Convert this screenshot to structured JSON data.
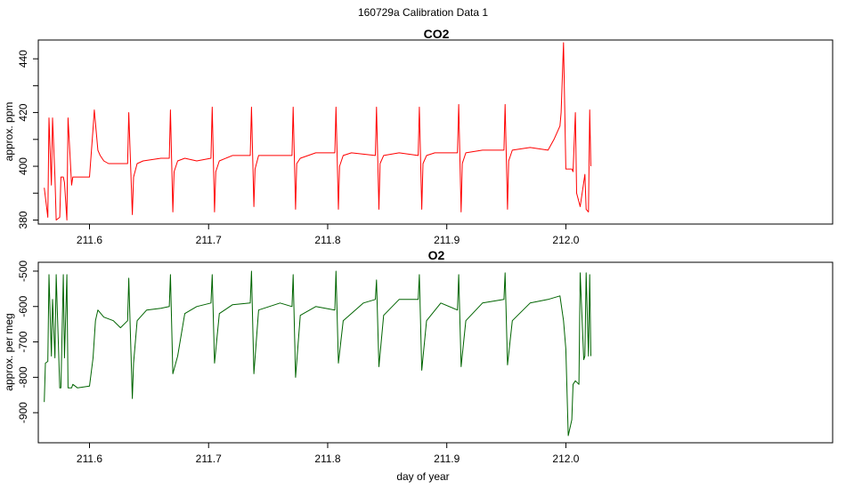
{
  "figure": {
    "suptitle": "160729a   Calibration Data 1"
  },
  "chart_data": [
    {
      "type": "line",
      "title": "CO2",
      "xlabel": "",
      "ylabel": "approx. ppm",
      "xlim": [
        211.557,
        212.224
      ],
      "ylim": [
        378.5,
        447
      ],
      "xticks": [
        211.6,
        211.7,
        211.8,
        211.9,
        212.0
      ],
      "xtick_labels": [
        "211.6",
        "211.7",
        "211.8",
        "211.9",
        "212.0"
      ],
      "yticks": [
        380,
        390,
        400,
        410,
        420,
        430,
        440
      ],
      "ytick_labels": [
        "380",
        "",
        "400",
        "",
        "420",
        "",
        "440"
      ],
      "color": "#ff0000",
      "grid": false,
      "series": [
        {
          "x": [
            211.562,
            211.565,
            211.566,
            211.568,
            211.569,
            211.571,
            211.572,
            211.575,
            211.576,
            211.578,
            211.579,
            211.581,
            211.582,
            211.585,
            211.586,
            211.589,
            211.59,
            211.6,
            211.603,
            211.604,
            211.607,
            211.609,
            211.612,
            211.616,
            211.625,
            211.632,
            211.633,
            211.636,
            211.637,
            211.64,
            211.645,
            211.66,
            211.667,
            211.668,
            211.67,
            211.671,
            211.674,
            211.68,
            211.69,
            211.702,
            211.703,
            211.705,
            211.706,
            211.709,
            211.72,
            211.735,
            211.736,
            211.738,
            211.739,
            211.742,
            211.75,
            211.77,
            211.771,
            211.773,
            211.774,
            211.777,
            211.79,
            211.806,
            211.807,
            211.809,
            211.81,
            211.813,
            211.82,
            211.84,
            211.841,
            211.843,
            211.844,
            211.847,
            211.86,
            211.876,
            211.877,
            211.879,
            211.88,
            211.883,
            211.89,
            211.909,
            211.91,
            211.912,
            211.913,
            211.916,
            211.93,
            211.948,
            211.949,
            211.951,
            211.952,
            211.955,
            211.97,
            211.985,
            211.99,
            211.995,
            211.996,
            211.998,
            212.0,
            212.005,
            212.006,
            212.008,
            212.009,
            212.012,
            212.016,
            212.017,
            212.019,
            212.02,
            212.021
          ],
          "y": [
            392,
            381,
            418,
            393,
            418,
            396,
            380,
            381,
            396,
            396,
            394,
            380,
            418,
            393,
            396,
            396,
            396,
            396,
            414,
            421,
            406,
            404,
            402,
            401,
            401,
            401,
            420,
            382,
            396,
            401,
            402,
            403,
            403,
            421,
            383,
            398,
            402,
            403,
            402,
            403,
            422,
            383,
            398,
            402,
            404,
            404,
            422,
            385,
            399,
            404,
            404,
            404,
            422,
            384,
            401,
            403,
            405,
            405,
            422,
            384,
            400,
            404,
            405,
            404,
            422,
            384,
            401,
            404,
            405,
            404,
            422,
            384,
            401,
            404,
            405,
            405,
            423,
            383,
            401,
            405,
            406,
            406,
            423,
            384,
            402,
            406,
            407,
            406,
            410,
            415,
            420,
            446,
            399,
            399,
            398,
            420,
            390,
            385,
            397,
            384,
            383,
            421,
            400
          ]
        }
      ]
    },
    {
      "type": "line",
      "title": "O2",
      "xlabel": "day of year",
      "ylabel": "approx. per meg",
      "xlim": [
        211.557,
        212.224
      ],
      "ylim": [
        -985,
        -475
      ],
      "xticks": [
        211.6,
        211.7,
        211.8,
        211.9,
        212.0
      ],
      "xtick_labels": [
        "211.6",
        "211.7",
        "211.8",
        "211.9",
        "212.0"
      ],
      "yticks": [
        -500,
        -600,
        -700,
        -800,
        -900
      ],
      "ytick_labels": [
        "-500",
        "-600",
        "-700",
        "-800",
        "-900"
      ],
      "color": "#006400",
      "grid": false,
      "series": [
        {
          "x": [
            211.562,
            211.563,
            211.565,
            211.566,
            211.568,
            211.569,
            211.571,
            211.572,
            211.575,
            211.576,
            211.578,
            211.579,
            211.581,
            211.582,
            211.585,
            211.586,
            211.59,
            211.6,
            211.603,
            211.605,
            211.607,
            211.612,
            211.62,
            211.626,
            211.632,
            211.633,
            211.636,
            211.637,
            211.64,
            211.648,
            211.66,
            211.667,
            211.668,
            211.67,
            211.674,
            211.68,
            211.69,
            211.702,
            211.703,
            211.705,
            211.709,
            211.72,
            211.735,
            211.736,
            211.738,
            211.742,
            211.76,
            211.77,
            211.771,
            211.773,
            211.777,
            211.79,
            211.806,
            211.807,
            211.809,
            211.813,
            211.83,
            211.84,
            211.841,
            211.843,
            211.847,
            211.86,
            211.876,
            211.877,
            211.879,
            211.883,
            211.895,
            211.909,
            211.91,
            211.912,
            211.916,
            211.93,
            211.948,
            211.949,
            211.951,
            211.955,
            211.97,
            211.985,
            211.995,
            211.998,
            212.0,
            212.002,
            212.005,
            212.006,
            212.008,
            212.011,
            212.012,
            212.015,
            212.016,
            212.017,
            212.019,
            212.02,
            212.021
          ],
          "y": [
            -870,
            -760,
            -755,
            -510,
            -740,
            -580,
            -745,
            -510,
            -830,
            -830,
            -510,
            -745,
            -510,
            -830,
            -830,
            -820,
            -830,
            -825,
            -745,
            -640,
            -610,
            -630,
            -640,
            -660,
            -640,
            -520,
            -860,
            -760,
            -640,
            -610,
            -605,
            -600,
            -510,
            -790,
            -740,
            -620,
            -600,
            -590,
            -510,
            -760,
            -620,
            -595,
            -590,
            -500,
            -790,
            -610,
            -590,
            -600,
            -510,
            -800,
            -625,
            -600,
            -610,
            -500,
            -760,
            -640,
            -590,
            -580,
            -525,
            -770,
            -625,
            -580,
            -580,
            -510,
            -780,
            -640,
            -590,
            -610,
            -510,
            -770,
            -640,
            -590,
            -580,
            -505,
            -765,
            -640,
            -590,
            -580,
            -570,
            -640,
            -720,
            -965,
            -920,
            -820,
            -810,
            -820,
            -505,
            -750,
            -740,
            -505,
            -740,
            -510,
            -740
          ]
        }
      ]
    }
  ]
}
